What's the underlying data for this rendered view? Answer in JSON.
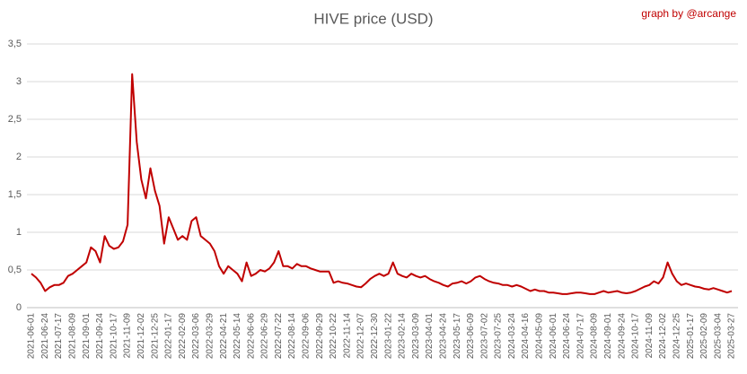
{
  "chart_data": {
    "type": "line",
    "title": "HIVE price (USD)",
    "annotation": "graph by @arcange",
    "categories": [
      "2021-06-01",
      null,
      null,
      "2021-06-24",
      null,
      null,
      "2021-07-17",
      null,
      null,
      "2021-08-09",
      null,
      null,
      "2021-09-01",
      null,
      null,
      "2021-09-24",
      null,
      null,
      "2021-10-17",
      null,
      null,
      "2021-11-09",
      null,
      null,
      "2021-12-02",
      null,
      null,
      "2021-12-25",
      null,
      null,
      "2022-01-17",
      null,
      null,
      "2022-02-09",
      null,
      null,
      "2022-03-06",
      null,
      null,
      "2022-03-29",
      null,
      null,
      "2022-04-21",
      null,
      null,
      "2022-05-14",
      null,
      null,
      "2022-06-06",
      null,
      null,
      "2022-06-29",
      null,
      null,
      "2022-07-22",
      null,
      null,
      "2022-08-14",
      null,
      null,
      "2022-09-06",
      null,
      null,
      "2022-09-29",
      null,
      null,
      "2022-10-22",
      null,
      null,
      "2022-11-14",
      null,
      null,
      "2022-12-07",
      null,
      null,
      "2022-12-30",
      null,
      null,
      "2023-01-22",
      null,
      null,
      "2023-02-14",
      null,
      null,
      "2023-03-09",
      null,
      null,
      "2023-04-01",
      null,
      null,
      "2023-04-24",
      null,
      null,
      "2023-05-17",
      null,
      null,
      "2023-06-09",
      null,
      null,
      "2023-07-02",
      null,
      null,
      "2023-07-25",
      null,
      null,
      "2024-03-24",
      null,
      null,
      "2024-04-16",
      null,
      null,
      "2024-05-09",
      null,
      null,
      "2024-06-01",
      null,
      null,
      "2024-06-24",
      null,
      null,
      "2024-07-17",
      null,
      null,
      "2024-08-09",
      null,
      null,
      "2024-09-01",
      null,
      null,
      "2024-09-24",
      null,
      null,
      "2024-10-17",
      null,
      null,
      "2024-11-09",
      null,
      null,
      "2024-12-02",
      null,
      null,
      "2024-12-25",
      null,
      null,
      "2025-01-17",
      null,
      null,
      "2025-02-09",
      null,
      null,
      "2025-03-04",
      null,
      null,
      "2025-03-27"
    ],
    "series": [
      {
        "name": "HIVE price",
        "color": "#c00000",
        "values": [
          0.45,
          0.4,
          0.33,
          0.22,
          0.27,
          0.3,
          0.3,
          0.33,
          0.42,
          0.45,
          0.5,
          0.55,
          0.6,
          0.8,
          0.75,
          0.6,
          0.95,
          0.82,
          0.78,
          0.8,
          0.88,
          1.1,
          3.1,
          2.2,
          1.7,
          1.45,
          1.85,
          1.55,
          1.35,
          0.85,
          1.2,
          1.05,
          0.9,
          0.95,
          0.9,
          1.15,
          1.2,
          0.95,
          0.9,
          0.85,
          0.75,
          0.55,
          0.45,
          0.55,
          0.5,
          0.45,
          0.35,
          0.6,
          0.42,
          0.45,
          0.5,
          0.48,
          0.52,
          0.6,
          0.75,
          0.55,
          0.55,
          0.52,
          0.58,
          0.55,
          0.55,
          0.52,
          0.5,
          0.48,
          0.48,
          0.48,
          0.33,
          0.35,
          0.33,
          0.32,
          0.3,
          0.28,
          0.27,
          0.32,
          0.38,
          0.42,
          0.45,
          0.42,
          0.45,
          0.6,
          0.45,
          0.42,
          0.4,
          0.45,
          0.42,
          0.4,
          0.42,
          0.38,
          0.35,
          0.33,
          0.3,
          0.28,
          0.32,
          0.33,
          0.35,
          0.32,
          0.35,
          0.4,
          0.42,
          0.38,
          0.35,
          0.33,
          0.32,
          0.3,
          0.3,
          0.28,
          0.3,
          0.28,
          0.25,
          0.22,
          0.24,
          0.22,
          0.22,
          0.2,
          0.2,
          0.19,
          0.18,
          0.18,
          0.19,
          0.2,
          0.2,
          0.19,
          0.18,
          0.18,
          0.2,
          0.22,
          0.2,
          0.21,
          0.22,
          0.2,
          0.19,
          0.2,
          0.22,
          0.25,
          0.28,
          0.3,
          0.35,
          0.32,
          0.4,
          0.6,
          0.45,
          0.35,
          0.3,
          0.32,
          0.3,
          0.28,
          0.27,
          0.25,
          0.24,
          0.26,
          0.24,
          0.22,
          0.2,
          0.22
        ]
      }
    ],
    "ylim": [
      0,
      3.5
    ],
    "yticks": [
      0,
      {
        "value": 0.5,
        "label": "0,5"
      },
      1,
      {
        "value": 1.5,
        "label": "1,5"
      },
      2,
      {
        "value": 2.5,
        "label": "2,5"
      },
      3,
      {
        "value": 3.5,
        "label": "3,5"
      }
    ],
    "grid": true
  }
}
